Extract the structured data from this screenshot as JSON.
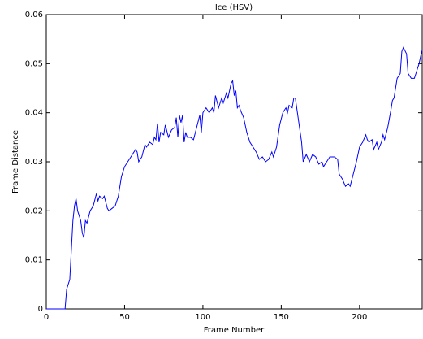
{
  "chart_data": {
    "type": "line",
    "title": "Ice (HSV)",
    "x_label": "Frame Number",
    "y_label": "Frame Distance",
    "x": [
      0,
      12,
      13,
      15,
      16,
      17,
      18,
      19,
      20,
      22,
      23,
      24,
      25,
      26,
      28,
      30,
      32,
      33,
      34,
      36,
      37,
      39,
      40,
      42,
      44,
      46,
      48,
      50,
      52,
      54,
      55,
      57,
      58,
      59,
      61,
      63,
      64,
      66,
      68,
      69,
      70,
      71,
      72,
      73,
      75,
      76,
      78,
      80,
      82,
      83,
      84,
      85,
      86,
      87,
      88,
      89,
      90,
      92,
      94,
      96,
      98,
      99,
      100,
      102,
      104,
      106,
      107,
      108,
      110,
      112,
      113,
      115,
      116,
      118,
      119,
      120,
      121,
      122,
      123,
      124,
      126,
      128,
      130,
      132,
      134,
      136,
      138,
      140,
      142,
      144,
      145,
      147,
      149,
      151,
      153,
      154,
      155,
      157,
      158,
      159,
      161,
      163,
      164,
      166,
      168,
      170,
      172,
      174,
      176,
      177,
      179,
      181,
      184,
      186,
      187,
      189,
      191,
      193,
      194,
      196,
      198,
      200,
      202,
      204,
      205,
      206,
      208,
      209,
      211,
      212,
      214,
      215,
      216,
      218,
      220,
      221,
      222,
      224,
      226,
      227,
      228,
      230,
      231,
      233,
      235,
      236,
      238,
      239,
      240
    ],
    "series": [
      {
        "name": "Ice",
        "color": "#0000ff",
        "values": [
          0,
          0,
          0.004,
          0.006,
          0.012,
          0.018,
          0.021,
          0.0225,
          0.02,
          0.018,
          0.0155,
          0.0145,
          0.018,
          0.0175,
          0.02,
          0.021,
          0.0235,
          0.022,
          0.023,
          0.0225,
          0.023,
          0.0205,
          0.02,
          0.0205,
          0.021,
          0.023,
          0.027,
          0.029,
          0.03,
          0.031,
          0.0315,
          0.0325,
          0.032,
          0.03,
          0.031,
          0.0335,
          0.033,
          0.034,
          0.0335,
          0.035,
          0.0345,
          0.0378,
          0.034,
          0.036,
          0.0355,
          0.0375,
          0.035,
          0.0365,
          0.037,
          0.039,
          0.035,
          0.0395,
          0.038,
          0.0395,
          0.034,
          0.036,
          0.035,
          0.035,
          0.0345,
          0.037,
          0.0395,
          0.036,
          0.04,
          0.041,
          0.04,
          0.041,
          0.04,
          0.0435,
          0.041,
          0.043,
          0.042,
          0.044,
          0.043,
          0.046,
          0.0465,
          0.0435,
          0.0445,
          0.041,
          0.0415,
          0.0405,
          0.039,
          0.036,
          0.034,
          0.033,
          0.032,
          0.0305,
          0.031,
          0.03,
          0.0305,
          0.032,
          0.031,
          0.033,
          0.0375,
          0.04,
          0.041,
          0.04,
          0.0415,
          0.041,
          0.043,
          0.043,
          0.0385,
          0.034,
          0.03,
          0.0315,
          0.03,
          0.0315,
          0.031,
          0.0295,
          0.03,
          0.029,
          0.03,
          0.031,
          0.031,
          0.0305,
          0.0275,
          0.0265,
          0.025,
          0.0255,
          0.025,
          0.0275,
          0.03,
          0.033,
          0.034,
          0.0355,
          0.0345,
          0.034,
          0.0345,
          0.0325,
          0.034,
          0.0325,
          0.034,
          0.0355,
          0.0345,
          0.037,
          0.0405,
          0.0425,
          0.043,
          0.047,
          0.048,
          0.0525,
          0.0533,
          0.052,
          0.048,
          0.047,
          0.047,
          0.048,
          0.05,
          0.0515,
          0.0528
        ]
      }
    ],
    "xlim": [
      0,
      240
    ],
    "ylim": [
      0,
      0.06
    ],
    "xticks": [
      0,
      50,
      100,
      150,
      200
    ],
    "yticks": [
      0,
      0.01,
      0.02,
      0.03,
      0.04,
      0.05,
      0.06
    ]
  }
}
